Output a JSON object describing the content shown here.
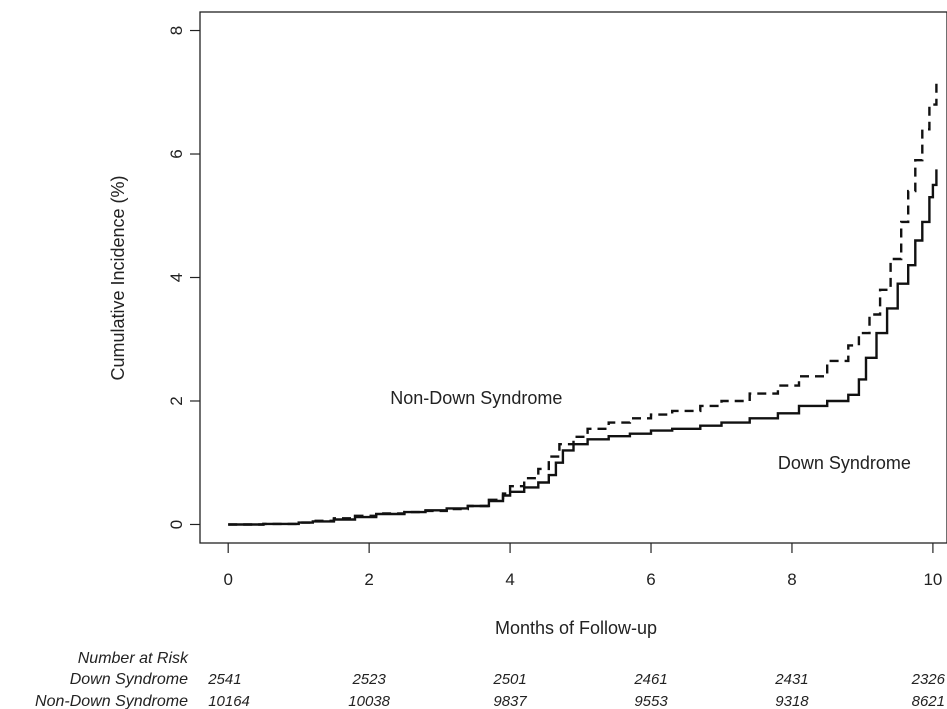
{
  "chart_data": {
    "type": "line",
    "title": "",
    "xlabel": "Months of Follow-up",
    "ylabel": "Cumulative Incidence (%)",
    "xlim": [
      -0.4,
      10.2
    ],
    "ylim": [
      -0.3,
      8.3
    ],
    "xticks": [
      0,
      2,
      4,
      6,
      8,
      10
    ],
    "yticks": [
      0,
      2,
      4,
      6,
      8
    ],
    "grid": false,
    "series": [
      {
        "name": "Down Syndrome",
        "line_style": "solid",
        "x": [
          0,
          0.5,
          1.0,
          1.2,
          1.5,
          1.8,
          2.1,
          2.5,
          2.8,
          3.1,
          3.4,
          3.7,
          3.9,
          4.0,
          4.2,
          4.4,
          4.55,
          4.65,
          4.75,
          4.9,
          5.1,
          5.4,
          5.7,
          6.0,
          6.3,
          6.7,
          7.0,
          7.4,
          7.8,
          8.1,
          8.5,
          8.8,
          8.95,
          9.05,
          9.2,
          9.35,
          9.5,
          9.65,
          9.75,
          9.85,
          9.95,
          10.0,
          10.05
        ],
        "y": [
          0,
          0.01,
          0.03,
          0.05,
          0.08,
          0.12,
          0.17,
          0.2,
          0.23,
          0.26,
          0.3,
          0.38,
          0.47,
          0.53,
          0.6,
          0.68,
          0.8,
          1.0,
          1.2,
          1.3,
          1.38,
          1.43,
          1.47,
          1.52,
          1.55,
          1.6,
          1.65,
          1.72,
          1.8,
          1.92,
          2.0,
          2.1,
          2.35,
          2.7,
          3.1,
          3.5,
          3.9,
          4.2,
          4.6,
          4.9,
          5.3,
          5.5,
          5.75
        ]
      },
      {
        "name": "Non-Down Syndrome",
        "line_style": "dashed",
        "x": [
          0,
          0.5,
          1.0,
          1.2,
          1.5,
          1.8,
          2.1,
          2.5,
          2.8,
          3.1,
          3.4,
          3.7,
          3.9,
          4.0,
          4.2,
          4.4,
          4.55,
          4.7,
          4.9,
          5.1,
          5.4,
          5.7,
          6.0,
          6.3,
          6.7,
          7.0,
          7.4,
          7.8,
          8.1,
          8.5,
          8.8,
          8.95,
          9.1,
          9.25,
          9.4,
          9.55,
          9.65,
          9.75,
          9.85,
          9.95,
          10.05
        ],
        "y": [
          0,
          0.01,
          0.03,
          0.06,
          0.1,
          0.14,
          0.18,
          0.2,
          0.22,
          0.25,
          0.3,
          0.4,
          0.5,
          0.62,
          0.75,
          0.9,
          1.1,
          1.3,
          1.42,
          1.55,
          1.65,
          1.72,
          1.78,
          1.84,
          1.92,
          2.0,
          2.12,
          2.25,
          2.4,
          2.65,
          2.9,
          3.1,
          3.4,
          3.8,
          4.3,
          4.9,
          5.4,
          5.9,
          6.4,
          6.8,
          7.2
        ]
      }
    ],
    "annotations": [
      {
        "text": "Non-Down Syndrome",
        "x": 2.3,
        "y": 1.95
      },
      {
        "text": "Down Syndrome",
        "x": 7.8,
        "y": 0.9
      }
    ]
  },
  "risk_table": {
    "title": "Number at Risk",
    "times": [
      0,
      2,
      4,
      6,
      8,
      10
    ],
    "rows": [
      {
        "name": "Down Syndrome",
        "values": [
          "2541",
          "2523",
          "2501",
          "2461",
          "2431",
          "2326"
        ]
      },
      {
        "name": "Non-Down Syndrome",
        "values": [
          "10164",
          "10038",
          "9837",
          "9553",
          "9318",
          "8621"
        ]
      }
    ]
  }
}
